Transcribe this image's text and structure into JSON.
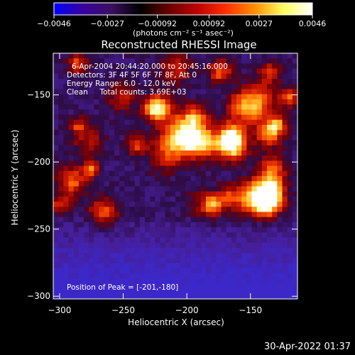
{
  "colorbar": {
    "tick_labels": [
      "-0.0046",
      "-0.0027",
      "-0.00092",
      "0.00092",
      "0.0027",
      "0.0046"
    ],
    "unit_label": "(photons cm⁻² s⁻¹ asec⁻²)",
    "range": [
      -0.0046,
      0.0046
    ],
    "colors": [
      "#0000ff",
      "#3a00a0",
      "#3a1060",
      "#000000",
      "#6a0000",
      "#c00000",
      "#ff3000",
      "#ff9000",
      "#ffff60",
      "#ffffff"
    ]
  },
  "chart_data": {
    "type": "heatmap",
    "title": "Reconstructed RHESSI Image",
    "xlabel": "Heliocentric X (arcsec)",
    "ylabel": "Heliocentric Y (arcsec)",
    "xlim": [
      -305,
      -113
    ],
    "ylim": [
      -302,
      -119
    ],
    "x_ticks": [
      {
        "value": -300,
        "label": "−300"
      },
      {
        "value": -250,
        "label": "−250"
      },
      {
        "value": -200,
        "label": "−200"
      },
      {
        "value": -150,
        "label": "−150"
      }
    ],
    "y_ticks": [
      {
        "value": -300,
        "label": "−300"
      },
      {
        "value": -250,
        "label": "−250"
      },
      {
        "value": -200,
        "label": "−200"
      },
      {
        "value": -150,
        "label": "−150"
      }
    ],
    "annotations": [
      "6-Apr-2004 20:44:20.000 to 20:45:16.000",
      "Detectors: 3F 4F 5F 6F 7F 8F, Att 0",
      "Energy Range: 6.0 - 12.0 keV",
      "Clean     Total counts: 3.69E+03"
    ],
    "peak_label": "Position of Peak = [-201,-180]",
    "peak": [
      -201,
      -180
    ],
    "grid": false
  },
  "footer": {
    "date": "30-Apr-2022 01:37"
  }
}
